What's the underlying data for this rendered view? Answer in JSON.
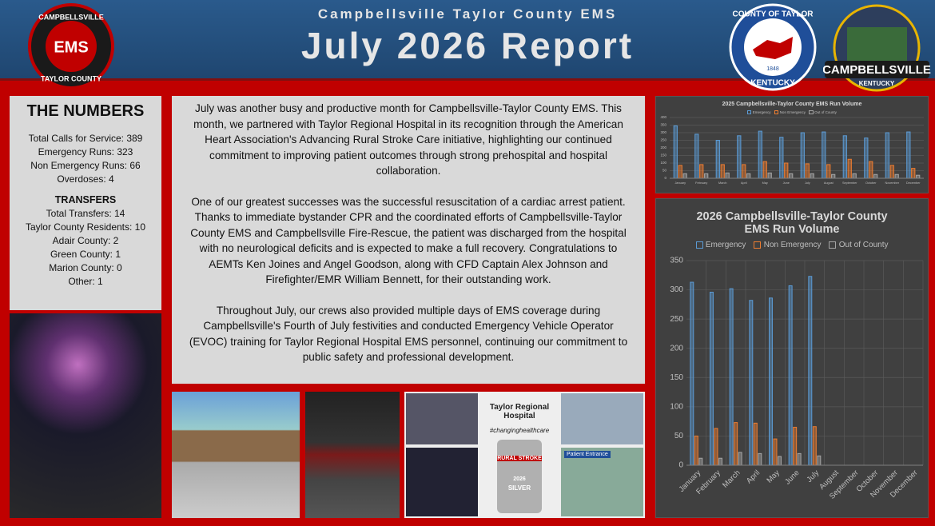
{
  "header": {
    "org": "Campbellsville Taylor County EMS",
    "title": "July 2026 Report"
  },
  "logos": {
    "ems": [
      "CAMPBELLSVILLE",
      "EMS",
      "TAYLOR COUNTY"
    ],
    "county": [
      "COUNTY OF TAYLOR",
      "1848",
      "KENTUCKY"
    ],
    "city": [
      "CAMPBELLSVILLE",
      "KENTUCKY"
    ]
  },
  "numbers": {
    "heading": "THE NUMBERS",
    "lines": [
      "Total Calls for Service: 389",
      "Emergency Runs: 323",
      "Non Emergency Runs: 66",
      "Overdoses: 4"
    ],
    "transfers_heading": "TRANSFERS",
    "transfers": [
      "Total Transfers: 14",
      "Taylor County Residents: 10",
      "Adair County: 2",
      "Green County: 1",
      "Marion County: 0",
      "Other: 1"
    ]
  },
  "body": [
    "July was another busy and productive month for Campbellsville-Taylor County EMS. This month, we partnered with Taylor Regional Hospital in its recognition through the American Heart Association's Advancing Rural Stroke Care initiative,  highlighting our continued commitment to improving patient outcomes through strong prehospital and hospital collaboration.",
    "One of our greatest successes was the successful resuscitation of a cardiac arrest patient. Thanks to immediate bystander CPR and the coordinated efforts  of Campbellsville-Taylor County EMS and Campbellsville Fire-Rescue, the patient was discharged from the hospital with no neurological deficits and is expected to make a full recovery. Congratulations to AEMTs Ken Joines and Angel Goodson, along with CFD Captain Alex Johnson and Firefighter/EMR William Bennett, for their outstanding work.",
    "Throughout July, our crews also provided multiple days of EMS coverage during Campbellsville's Fourth of July festivities  and conducted Emergency Vehicle Operator (EVOC) training for Taylor Regional Hospital EMS personnel, continuing our commitment to public safety and professional development."
  ],
  "poster": {
    "hospital": "Taylor Regional Hospital",
    "tag": "#changinghealthcare",
    "badge": [
      "RURAL STROKE",
      "2026",
      "SILVER"
    ],
    "sign": "Patient Entrance"
  },
  "chart_data": [
    {
      "type": "bar",
      "title": "2025 Campbellsville-Taylor County EMS Run Volume",
      "categories": [
        "January",
        "February",
        "March",
        "April",
        "May",
        "June",
        "July",
        "August",
        "September",
        "October",
        "November",
        "December"
      ],
      "series": [
        {
          "name": "Emergency",
          "color": "#5b9bd5",
          "values": [
            345,
            290,
            250,
            280,
            310,
            270,
            300,
            305,
            280,
            265,
            300,
            305
          ]
        },
        {
          "name": "Non Emergency",
          "color": "#ed7d31",
          "values": [
            85,
            90,
            90,
            90,
            110,
            100,
            95,
            90,
            125,
            110,
            85,
            65
          ]
        },
        {
          "name": "Out of County",
          "color": "#a5a5a5",
          "values": [
            30,
            30,
            35,
            30,
            35,
            30,
            30,
            25,
            30,
            25,
            25,
            20
          ]
        }
      ],
      "ylim": [
        0,
        400
      ],
      "yticks": [
        0,
        50,
        100,
        150,
        200,
        250,
        300,
        350,
        400
      ],
      "grid": true
    },
    {
      "type": "bar",
      "title": "2026 Campbellsville-Taylor County EMS Run Volume",
      "categories": [
        "January",
        "February",
        "March",
        "April",
        "May",
        "June",
        "July",
        "August",
        "September",
        "October",
        "November",
        "December"
      ],
      "series": [
        {
          "name": "Emergency",
          "color": "#5b9bd5",
          "values": [
            313,
            296,
            302,
            282,
            286,
            307,
            323,
            null,
            null,
            null,
            null,
            null
          ]
        },
        {
          "name": "Non Emergency",
          "color": "#ed7d31",
          "values": [
            50,
            63,
            73,
            72,
            45,
            65,
            66,
            null,
            null,
            null,
            null,
            null
          ]
        },
        {
          "name": "Out of County",
          "color": "#a5a5a5",
          "values": [
            12,
            12,
            22,
            20,
            15,
            20,
            16,
            null,
            null,
            null,
            null,
            null
          ]
        }
      ],
      "ylim": [
        0,
        350
      ],
      "yticks": [
        0,
        50,
        100,
        150,
        200,
        250,
        300,
        350
      ],
      "grid": true
    }
  ]
}
